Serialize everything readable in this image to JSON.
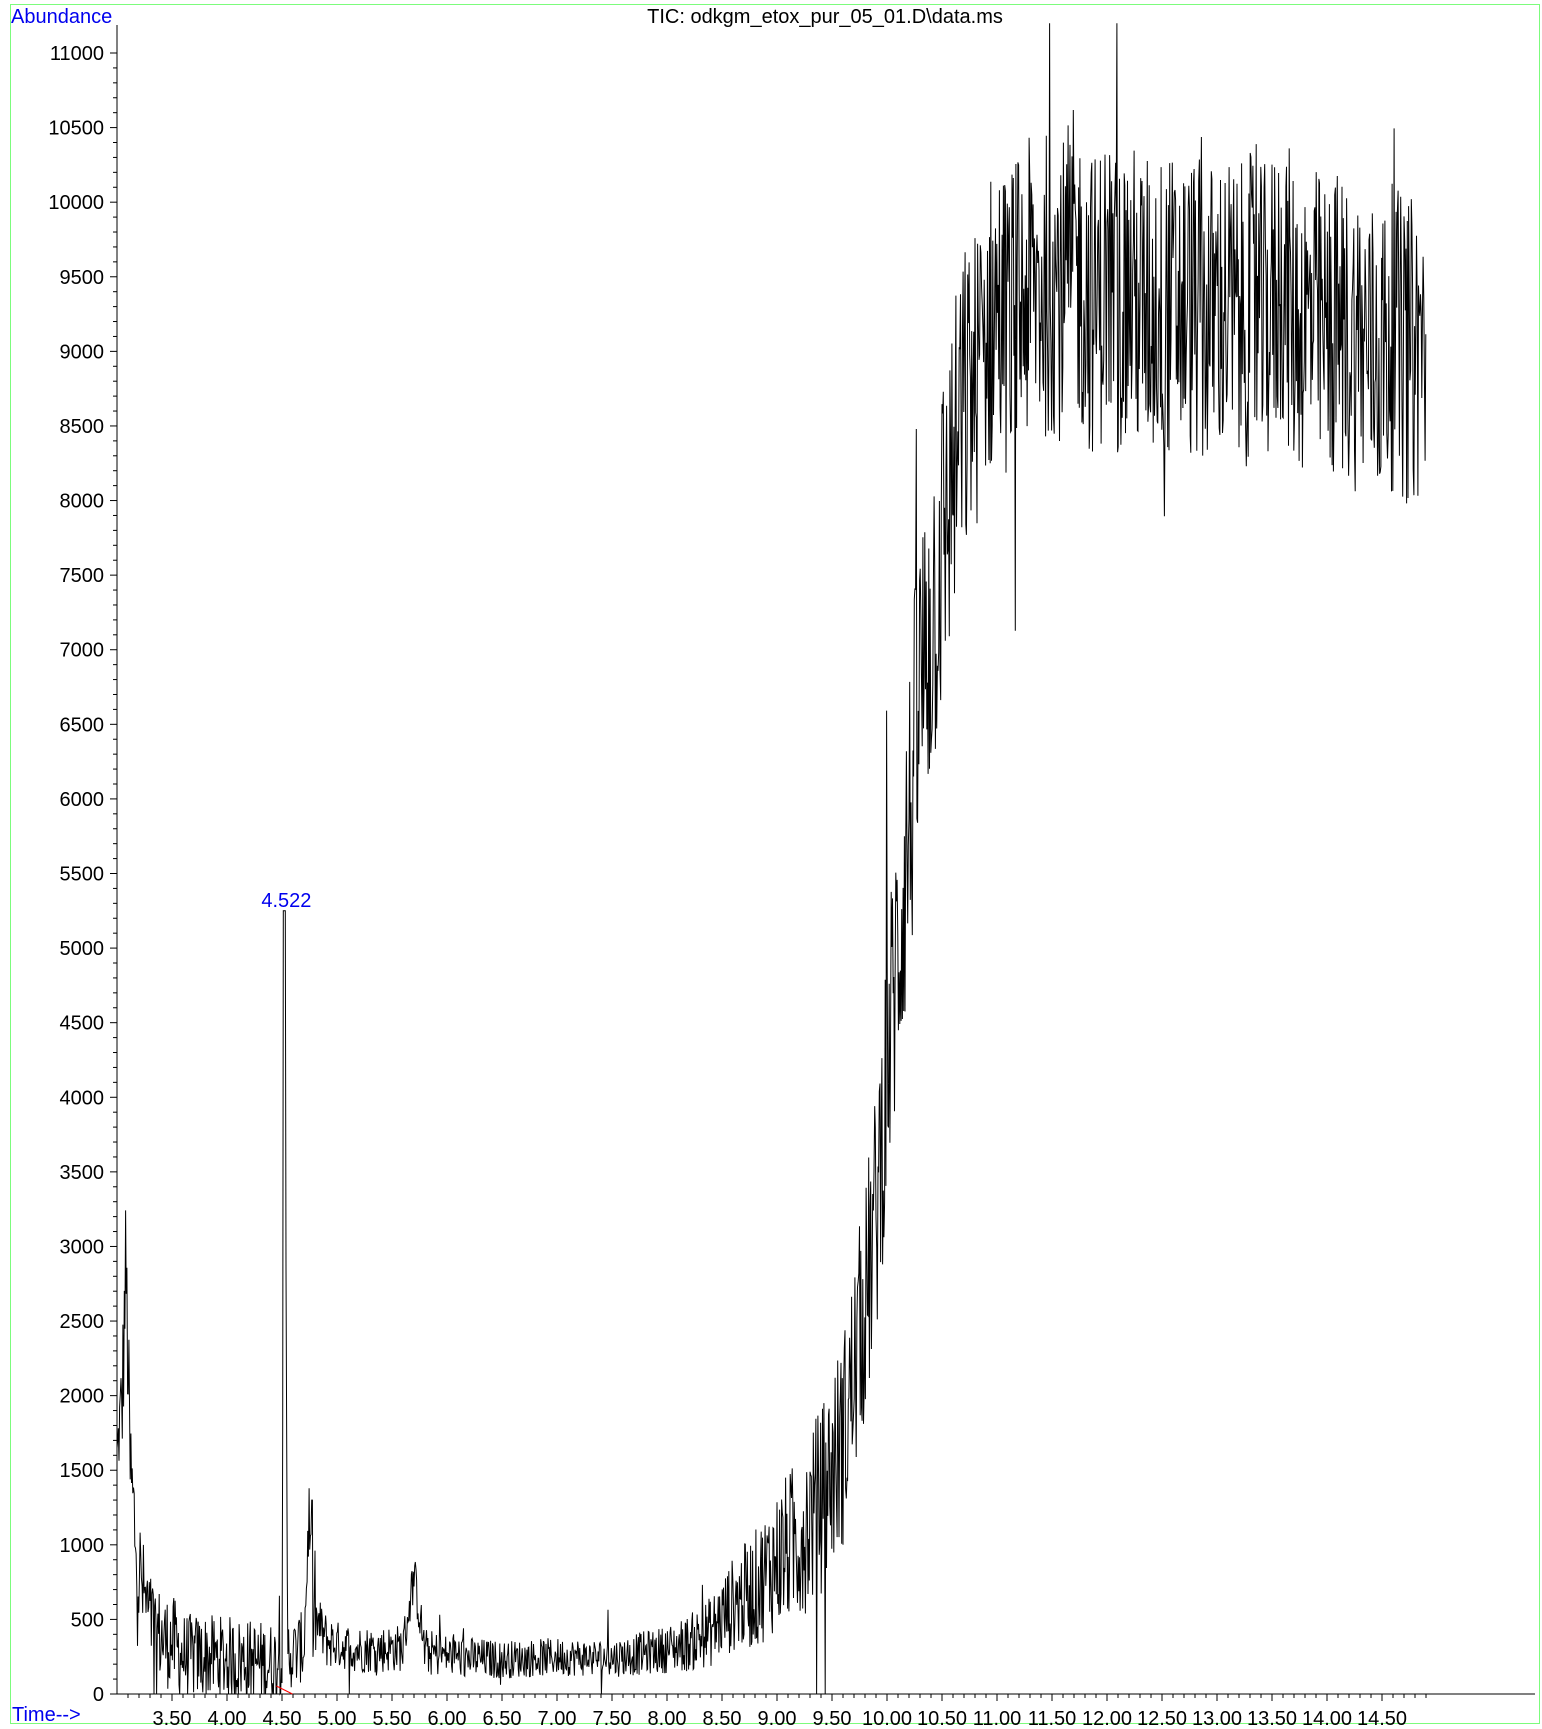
{
  "colors": {
    "axis_label": "#0000ee",
    "frame": "#7cfc7c",
    "trace": "#000000",
    "peak_label": "#0000ee",
    "baseline": "#ff0000"
  },
  "chart_data": {
    "type": "line",
    "title": "TIC: odkgm_etox_pur_05_01.D\\data.ms",
    "ylabel": "Abundance",
    "xlabel": "Time-->",
    "xlim": [
      3.0,
      15.0
    ],
    "ylim": [
      0,
      11000
    ],
    "x_ticks": [
      3.5,
      4.0,
      4.5,
      5.0,
      5.5,
      6.0,
      6.5,
      7.0,
      7.5,
      8.0,
      8.5,
      9.0,
      9.5,
      10.0,
      10.5,
      11.0,
      11.5,
      12.0,
      12.5,
      13.0,
      13.5,
      14.0,
      14.5
    ],
    "x_tick_labels": [
      "3.50",
      "4.00",
      "4.50",
      "5.00",
      "5.50",
      "6.00",
      "6.50",
      "7.00",
      "7.50",
      "8.00",
      "8.50",
      "9.00",
      "9.50",
      "10.00",
      "10.50",
      "11.00",
      "11.50",
      "12.00",
      "12.50",
      "13.00",
      "13.50",
      "14.00",
      "14.50"
    ],
    "y_ticks": [
      0,
      500,
      1000,
      1500,
      2000,
      2500,
      3000,
      3500,
      4000,
      4500,
      5000,
      5500,
      6000,
      6500,
      7000,
      7500,
      8000,
      8500,
      9000,
      9500,
      10000,
      10500,
      11000
    ],
    "y_tick_labels": [
      "0",
      "500",
      "1000",
      "1500",
      "2000",
      "2500",
      "3000",
      "3500",
      "4000",
      "4500",
      "5000",
      "5500",
      "6000",
      "6500",
      "7000",
      "7500",
      "8000",
      "8500",
      "9000",
      "9500",
      "10000",
      "10500",
      "11000"
    ],
    "grid": false,
    "legend": "none",
    "peaks": [
      {
        "x": 4.522,
        "y": 5250,
        "label": "4.522"
      }
    ],
    "series": [
      {
        "x": [
          3.0,
          3.05,
          3.08,
          3.12,
          3.15,
          3.2,
          3.25,
          3.3,
          3.35,
          3.4,
          3.45,
          3.5,
          3.55,
          3.6,
          3.7,
          3.8,
          3.9,
          4.0,
          4.1,
          4.2,
          4.3,
          4.4,
          4.45,
          4.5,
          4.522,
          4.55,
          4.6,
          4.65,
          4.7,
          4.75,
          4.78,
          4.82,
          4.9,
          5.0,
          5.2,
          5.4,
          5.6,
          5.7,
          5.8,
          6.0,
          6.2,
          6.5,
          7.0,
          7.5,
          8.0,
          8.2,
          8.4,
          8.6,
          8.8,
          9.0,
          9.2,
          9.4,
          9.6,
          9.8,
          9.9,
          10.0,
          10.1,
          10.2,
          10.3,
          10.4,
          10.5,
          10.6,
          10.7,
          10.8,
          10.9,
          11.0,
          11.1,
          11.2,
          11.3,
          11.4,
          11.5,
          11.6,
          11.7,
          11.8,
          11.9,
          12.0,
          12.1,
          12.2,
          12.3,
          12.4,
          12.5,
          12.6,
          12.7,
          12.8,
          12.9,
          13.0,
          13.1,
          13.2,
          13.3,
          13.4,
          13.5,
          13.6,
          13.7,
          13.8,
          13.9,
          14.0,
          14.1,
          14.2,
          14.3,
          14.4,
          14.5,
          14.6,
          14.7,
          14.8,
          14.9,
          15.0
        ],
        "y": [
          1600,
          2000,
          2900,
          1500,
          1200,
          800,
          650,
          500,
          450,
          380,
          350,
          350,
          300,
          260,
          250,
          250,
          240,
          240,
          230,
          220,
          210,
          200,
          220,
          260,
          5250,
          300,
          260,
          300,
          320,
          1300,
          400,
          480,
          360,
          330,
          300,
          300,
          310,
          800,
          280,
          260,
          240,
          230,
          250,
          240,
          300,
          340,
          420,
          600,
          700,
          900,
          1050,
          1300,
          1700,
          2600,
          3200,
          4200,
          5000,
          5800,
          6700,
          7200,
          7700,
          8200,
          8600,
          8800,
          9100,
          9300,
          9200,
          9300,
          9400,
          9400,
          9500,
          9400,
          9600,
          9400,
          9300,
          9500,
          9300,
          9400,
          9300,
          9300,
          9300,
          9300,
          9300,
          9300,
          9200,
          9300,
          9300,
          9200,
          9300,
          9200,
          9300,
          9500,
          9200,
          9200,
          9200,
          9100,
          9200,
          9100,
          9100,
          9000,
          9000,
          9100,
          9000,
          9000,
          9100,
          9000
        ],
        "noise_amplitude": [
          100,
          300,
          300,
          300,
          300,
          300,
          200,
          200,
          200,
          200,
          200,
          200,
          200,
          180,
          180,
          180,
          180,
          180,
          180,
          180,
          180,
          180,
          160,
          160,
          0,
          150,
          150,
          150,
          150,
          150,
          150,
          120,
          120,
          100,
          100,
          100,
          100,
          100,
          100,
          90,
          90,
          80,
          80,
          80,
          100,
          120,
          150,
          200,
          250,
          300,
          350,
          400,
          450,
          500,
          550,
          600,
          650,
          700,
          750,
          750,
          750,
          700,
          700,
          650,
          650,
          650,
          650,
          650,
          650,
          650,
          650,
          650,
          650,
          650,
          650,
          650,
          650,
          650,
          650,
          650,
          650,
          650,
          650,
          650,
          650,
          650,
          650,
          650,
          650,
          650,
          650,
          650,
          650,
          650,
          650,
          650,
          650,
          650,
          650,
          650,
          650,
          650,
          650,
          650,
          650
        ]
      }
    ]
  }
}
